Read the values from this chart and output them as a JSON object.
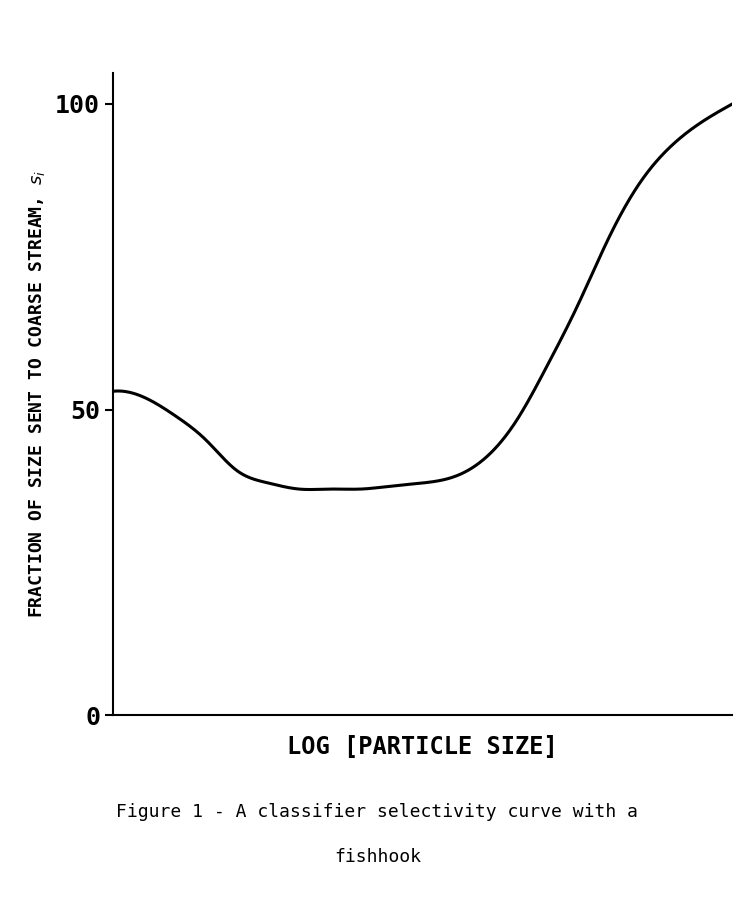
{
  "xlabel": "LOG [PARTICLE SIZE]",
  "ylabel_chars": "FRACTION OF SIZE SENT TO COARSE STREAM, si",
  "yticks": [
    0,
    50,
    100
  ],
  "ylim": [
    0,
    105
  ],
  "xlim": [
    0,
    10
  ],
  "caption_line1": "Figure 1 - A classifier selectivity curve with a",
  "caption_line2": "fishhook",
  "curve_color": "#000000",
  "curve_linewidth": 2.2,
  "background_color": "#ffffff",
  "xlabel_fontsize": 17,
  "ylabel_fontsize": 13,
  "ytick_fontsize": 18,
  "caption_fontsize": 13,
  "curve_x": [
    0.0,
    0.5,
    1.0,
    1.5,
    2.0,
    2.5,
    3.0,
    3.5,
    4.0,
    4.5,
    5.0,
    5.5,
    6.0,
    6.5,
    7.0,
    7.5,
    8.0,
    8.5,
    9.0,
    9.5,
    10.0
  ],
  "curve_y": [
    53,
    52,
    49,
    45,
    40,
    38,
    37,
    37,
    37,
    37.5,
    38,
    39,
    42,
    48,
    57,
    67,
    78,
    87,
    93,
    97,
    100
  ]
}
